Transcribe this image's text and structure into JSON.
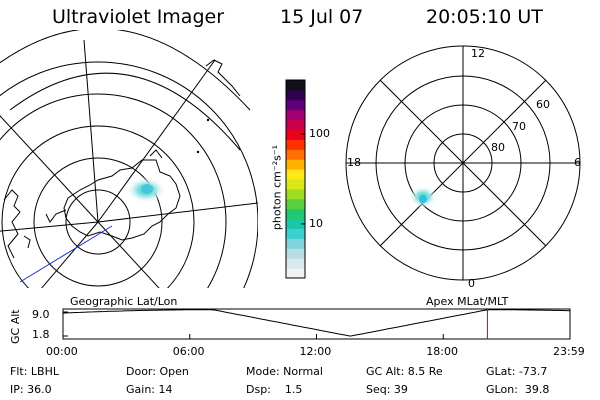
{
  "header": {
    "instrument": "Ultraviolet Imager",
    "date": "15 Jul 07",
    "time": "20:05:10 UT"
  },
  "left_panel": {
    "label": "Geographic Lat/Lon"
  },
  "right_panel": {
    "label": "Apex MLat/MLT",
    "mlt_labels": [
      "12",
      "18",
      "6",
      "0"
    ],
    "mlat_labels": [
      "60",
      "70",
      "80"
    ]
  },
  "colorbar": {
    "label": "photon cm⁻²s⁻¹",
    "ticks": [
      {
        "label": "100",
        "value": 100
      },
      {
        "label": "10",
        "value": 10
      }
    ],
    "range": [
      2.5,
      400
    ],
    "colors": [
      "#f2f2f2",
      "#d8e8ec",
      "#b8dce4",
      "#7fd4dc",
      "#3ccfd0",
      "#18c8a8",
      "#20c870",
      "#58d040",
      "#a0dc20",
      "#d8e818",
      "#ffe818",
      "#ffb000",
      "#ff7000",
      "#ff3000",
      "#e8001c",
      "#c8004c",
      "#a00070",
      "#600078",
      "#300050",
      "#101018"
    ]
  },
  "timeline": {
    "ylabel": "GC Alt",
    "yticks": [
      {
        "label": "9.0",
        "value": 9.0
      },
      {
        "label": "1.8",
        "value": 1.8
      }
    ],
    "xticks": [
      {
        "label": "00:00",
        "hour": 0
      },
      {
        "label": "06:00",
        "hour": 6
      },
      {
        "label": "12:00",
        "hour": 12
      },
      {
        "label": "18:00",
        "hour": 18
      },
      {
        "label": "23:59",
        "hour": 24
      }
    ],
    "current_hour": 20.09,
    "marker_color": "#d00000"
  },
  "footer": {
    "row1": [
      "Flt: LBHL",
      "Door: Open",
      "Mode: Normal",
      "GC Alt: 8.5 Re",
      "GLat: -73.7"
    ],
    "row2": [
      "IP: 36.0",
      "Gain: 14",
      "Dsp:    1.5",
      "Seq: 39",
      "GLon:  39.8"
    ]
  }
}
